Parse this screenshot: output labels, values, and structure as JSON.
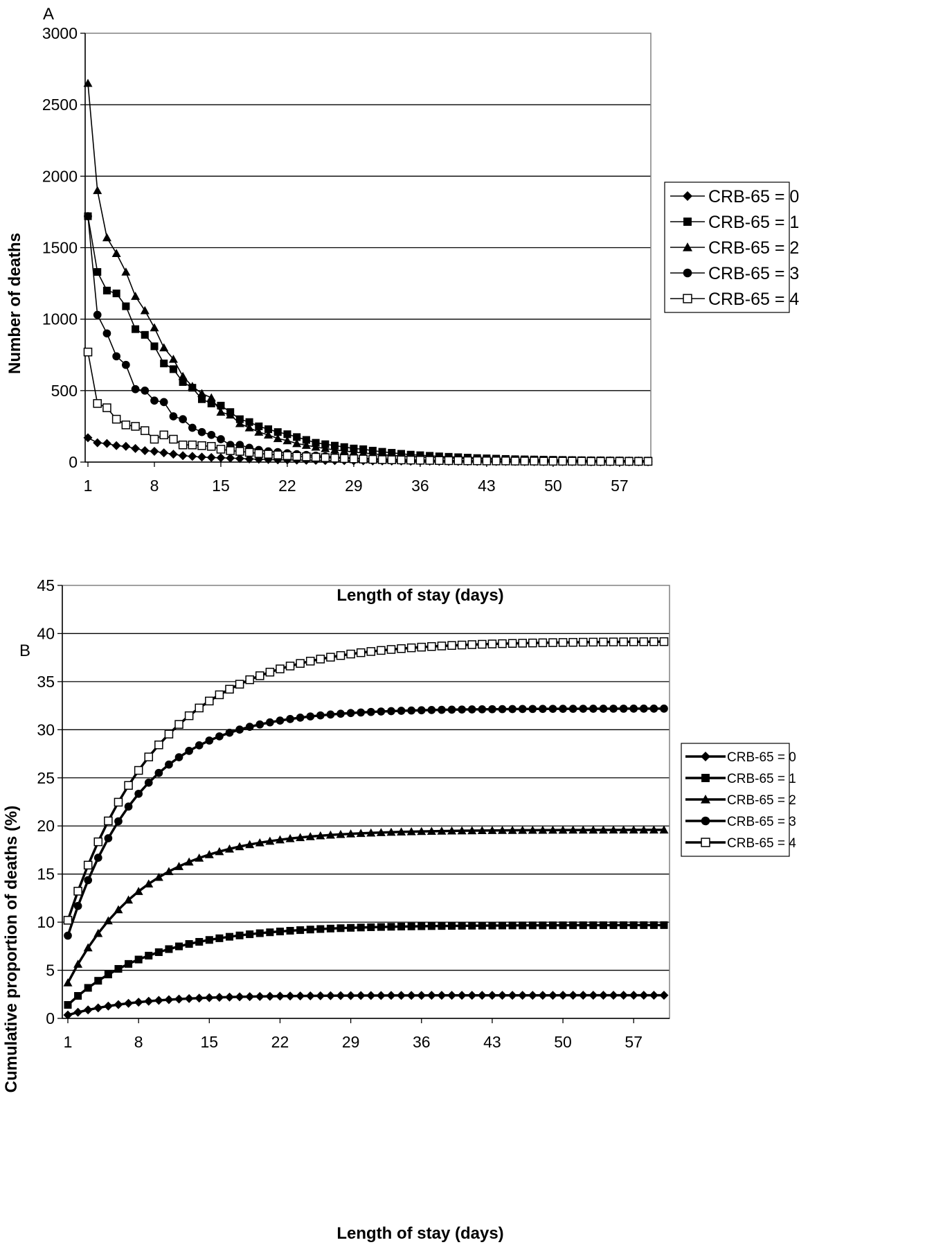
{
  "chart_data": [
    {
      "panel": "A",
      "type": "line",
      "ylabel": "Number of deaths",
      "xlabel": "Length of stay (days)",
      "ylim": [
        0,
        3000
      ],
      "yticks": [
        "0",
        "500",
        "1000",
        "1500",
        "2000",
        "2500",
        "3000"
      ],
      "xticks": [
        "1",
        "8",
        "15",
        "22",
        "29",
        "36",
        "43",
        "50",
        "57"
      ],
      "x_range": [
        1,
        60
      ],
      "grid": "horizontal",
      "legend_position": "right",
      "series": [
        {
          "name": "CRB-65 = 0",
          "marker": "diamond",
          "values": [
            170,
            135,
            130,
            115,
            110,
            95,
            80,
            75,
            65,
            55,
            45,
            40,
            35,
            32,
            30,
            28,
            25,
            22,
            20,
            18,
            16,
            15,
            14,
            13,
            12,
            11,
            10,
            10,
            9,
            9,
            8,
            8,
            7,
            7,
            6,
            6,
            6,
            5,
            5,
            5,
            5,
            4,
            4,
            4,
            4,
            4,
            3,
            3,
            3,
            3,
            3,
            3,
            3,
            2,
            2,
            2,
            2,
            2,
            2,
            2
          ]
        },
        {
          "name": "CRB-65 = 1",
          "marker": "square",
          "values": [
            1720,
            1330,
            1200,
            1180,
            1090,
            930,
            890,
            810,
            690,
            650,
            560,
            520,
            440,
            410,
            395,
            350,
            300,
            280,
            250,
            230,
            210,
            195,
            175,
            155,
            135,
            125,
            115,
            105,
            95,
            90,
            80,
            72,
            65,
            58,
            52,
            48,
            44,
            40,
            37,
            34,
            31,
            28,
            26,
            24,
            22,
            20,
            19,
            18,
            17,
            16,
            15,
            14,
            13,
            12,
            12,
            11,
            11,
            10,
            10,
            10
          ]
        },
        {
          "name": "CRB-65 = 2",
          "marker": "triangle",
          "values": [
            2650,
            1900,
            1570,
            1460,
            1330,
            1160,
            1060,
            940,
            800,
            720,
            600,
            530,
            480,
            450,
            350,
            330,
            270,
            240,
            210,
            190,
            165,
            150,
            130,
            118,
            105,
            95,
            85,
            78,
            70,
            64,
            58,
            52,
            47,
            43,
            39,
            36,
            33,
            30,
            28,
            26,
            24,
            22,
            20,
            19,
            18,
            17,
            16,
            15,
            14,
            13,
            12,
            12,
            11,
            11,
            10,
            10,
            9,
            9,
            9,
            8
          ]
        },
        {
          "name": "CRB-65 = 3",
          "marker": "circle",
          "values": [
            1720,
            1030,
            900,
            740,
            680,
            510,
            500,
            430,
            420,
            320,
            300,
            240,
            210,
            190,
            160,
            120,
            120,
            100,
            85,
            75,
            70,
            62,
            55,
            50,
            45,
            40,
            36,
            32,
            29,
            26,
            24,
            22,
            20,
            18,
            16,
            15,
            14,
            13,
            12,
            11,
            10,
            10,
            9,
            9,
            8,
            8,
            7,
            7,
            7,
            6,
            6,
            6,
            6,
            5,
            5,
            5,
            5,
            5,
            5,
            5
          ]
        },
        {
          "name": "CRB-65 = 4",
          "marker": "open-square",
          "values": [
            770,
            410,
            380,
            300,
            260,
            250,
            220,
            160,
            190,
            160,
            120,
            120,
            115,
            110,
            90,
            80,
            75,
            68,
            60,
            55,
            50,
            45,
            40,
            37,
            34,
            31,
            28,
            25,
            23,
            21,
            19,
            17,
            16,
            15,
            14,
            13,
            12,
            11,
            10,
            10,
            9,
            9,
            8,
            8,
            8,
            7,
            7,
            7,
            6,
            6,
            6,
            6,
            6,
            5,
            5,
            5,
            5,
            5,
            5,
            5
          ]
        }
      ]
    },
    {
      "panel": "B",
      "type": "line",
      "ylabel": "Cumulative proportion of deaths (%)",
      "xlabel": "Length of stay (days)",
      "ylim": [
        0,
        45
      ],
      "yticks": [
        "0",
        "5",
        "10",
        "15",
        "20",
        "25",
        "30",
        "35",
        "40",
        "45"
      ],
      "xticks": [
        "1",
        "8",
        "15",
        "22",
        "29",
        "36",
        "43",
        "50",
        "57"
      ],
      "x_range": [
        1,
        60
      ],
      "grid": "horizontal",
      "legend_position": "right",
      "series": [
        {
          "name": "CRB-65 = 0",
          "marker": "diamond",
          "start": 0.35,
          "end": 2.4,
          "rate": 0.15
        },
        {
          "name": "CRB-65 = 1",
          "marker": "square",
          "start": 1.4,
          "end": 9.7,
          "rate": 0.12
        },
        {
          "name": "CRB-65 = 2",
          "marker": "triangle",
          "start": 3.7,
          "end": 19.6,
          "rate": 0.13
        },
        {
          "name": "CRB-65 = 3",
          "marker": "circle",
          "start": 8.6,
          "end": 32.2,
          "rate": 0.14
        },
        {
          "name": "CRB-65 = 4",
          "marker": "open-square",
          "start": 10.2,
          "end": 39.2,
          "rate": 0.11
        }
      ]
    }
  ]
}
